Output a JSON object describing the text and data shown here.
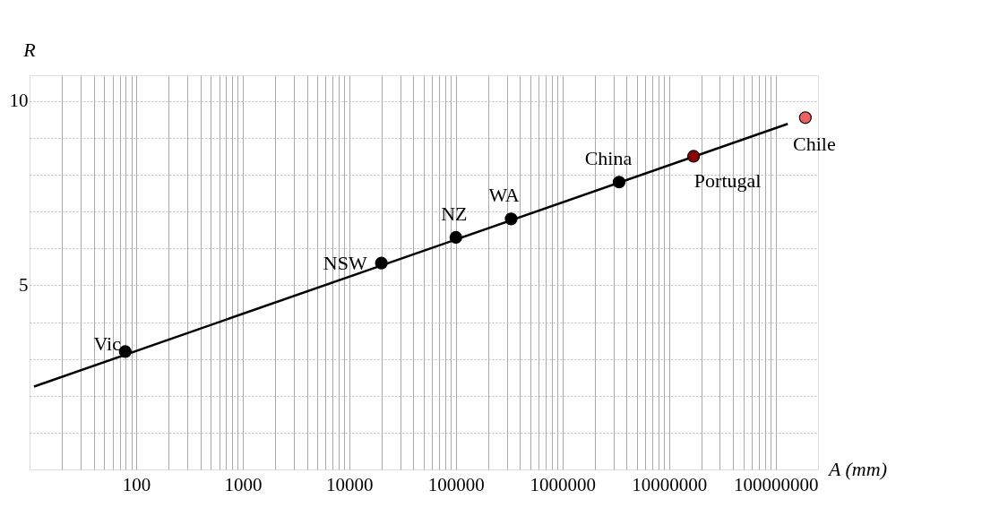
{
  "chart_data": {
    "type": "scatter",
    "xlabel": "A (mm)",
    "ylabel": "R",
    "log": "x",
    "grid": true,
    "xlim": [
      10,
      250000000
    ],
    "ylim": [
      0,
      10.7
    ],
    "xticks": [
      {
        "value": 20,
        "label": null
      },
      {
        "value": 30,
        "label": null
      },
      {
        "value": 40,
        "label": null
      },
      {
        "value": 50,
        "label": null
      },
      {
        "value": 60,
        "label": null
      },
      {
        "value": 70,
        "label": null
      },
      {
        "value": 80,
        "label": null
      },
      {
        "value": 90,
        "label": null
      },
      100,
      {
        "value": 200,
        "label": null
      },
      {
        "value": 300,
        "label": null
      },
      {
        "value": 400,
        "label": null
      },
      {
        "value": 500,
        "label": null
      },
      {
        "value": 600,
        "label": null
      },
      {
        "value": 700,
        "label": null
      },
      {
        "value": 800,
        "label": null
      },
      {
        "value": 900,
        "label": null
      },
      1000,
      {
        "value": 2000,
        "label": null
      },
      {
        "value": 3000,
        "label": null
      },
      {
        "value": 4000,
        "label": null
      },
      {
        "value": 5000,
        "label": null
      },
      {
        "value": 6000,
        "label": null
      },
      {
        "value": 7000,
        "label": null
      },
      {
        "value": 8000,
        "label": null
      },
      {
        "value": 9000,
        "label": null
      },
      10000,
      {
        "value": 20000,
        "label": null
      },
      {
        "value": 30000,
        "label": null
      },
      {
        "value": 40000,
        "label": null
      },
      {
        "value": 50000,
        "label": null
      },
      {
        "value": 60000,
        "label": null
      },
      {
        "value": 70000,
        "label": null
      },
      {
        "value": 80000,
        "label": null
      },
      {
        "value": 90000,
        "label": null
      },
      100000,
      {
        "value": 200000,
        "label": null
      },
      {
        "value": 300000,
        "label": null
      },
      {
        "value": 400000,
        "label": null
      },
      {
        "value": 500000,
        "label": null
      },
      {
        "value": 600000,
        "label": null
      },
      {
        "value": 700000,
        "label": null
      },
      {
        "value": 800000,
        "label": null
      },
      {
        "value": 900000,
        "label": null
      },
      1000000,
      {
        "value": 2000000,
        "label": null
      },
      {
        "value": 3000000,
        "label": null
      },
      {
        "value": 4000000,
        "label": null
      },
      {
        "value": 5000000,
        "label": null
      },
      {
        "value": 6000000,
        "label": null
      },
      {
        "value": 7000000,
        "label": null
      },
      {
        "value": 8000000,
        "label": null
      },
      {
        "value": 9000000,
        "label": null
      },
      10000000,
      {
        "value": 20000000,
        "label": null
      },
      {
        "value": 30000000,
        "label": null
      },
      {
        "value": 40000000,
        "label": null
      },
      {
        "value": 50000000,
        "label": null
      },
      {
        "value": 60000000,
        "label": null
      },
      {
        "value": 70000000,
        "label": null
      },
      {
        "value": 80000000,
        "label": null
      },
      {
        "value": 90000000,
        "label": null
      },
      100000000
    ],
    "yticks": [
      {
        "value": 1,
        "label": null
      },
      {
        "value": 2,
        "label": null
      },
      {
        "value": 3,
        "label": null
      },
      {
        "value": 4,
        "label": null
      },
      5,
      {
        "value": 6,
        "label": null
      },
      {
        "value": 7,
        "label": null
      },
      {
        "value": 8,
        "label": null
      },
      {
        "value": 9,
        "label": null
      },
      10
    ],
    "series": [
      {
        "type": "line",
        "color": "#000000",
        "line_style": "solid",
        "x": [
          11,
          130000000
        ],
        "values": [
          2.25,
          9.38
        ]
      },
      {
        "marker": "circle",
        "x": [
          79,
          20000,
          100000,
          330000,
          3400000,
          17000000,
          190000000
        ],
        "values": [
          3.2,
          5.6,
          6.3,
          6.8,
          7.8,
          8.5,
          9.55
        ],
        "colors": [
          "#000000",
          "#000000",
          "#000000",
          "#000000",
          "#000000",
          "#8b0000",
          "#f06060"
        ]
      }
    ],
    "annotations": [
      {
        "text": "Vic",
        "x": 79,
        "y": 3.2
      },
      {
        "text": "NSW",
        "x": 20000,
        "y": 5.6
      },
      {
        "text": "NZ",
        "x": 100000,
        "y": 6.3
      },
      {
        "text": "WA",
        "x": 330000,
        "y": 6.8
      },
      {
        "text": "China",
        "x": 3400000,
        "y": 7.8
      },
      {
        "text": "Portugal",
        "x": 17000000,
        "y": 8.5
      },
      {
        "text": "Chile",
        "x": 190000000,
        "y": 9.55
      }
    ]
  }
}
